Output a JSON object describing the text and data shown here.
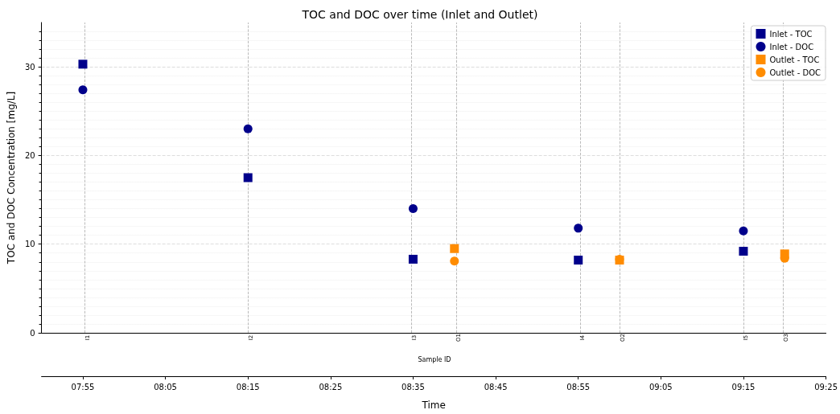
{
  "chart_data": {
    "type": "scatter",
    "title": "TOC and DOC over time (Inlet and Outlet)",
    "xlabel": "Time",
    "ylabel": "TOC and DOC Concentration [mg/L]",
    "annotations": [
      "Sample ID"
    ],
    "series": [
      {
        "name": "Inlet - TOC",
        "color": "#00008b",
        "marker": "square",
        "x": [
          7.9167,
          8.25,
          8.5833,
          8.9167,
          9.25
        ],
        "values": [
          30.3,
          17.5,
          8.3,
          8.2,
          9.2
        ]
      },
      {
        "name": "Inlet - DOC",
        "color": "#00008b",
        "marker": "circle",
        "x": [
          7.9167,
          8.25,
          8.5833,
          8.9167,
          9.25
        ],
        "values": [
          27.4,
          23.0,
          14.0,
          11.8,
          11.5
        ]
      },
      {
        "name": "Outlet - TOC",
        "color": "#ff8c00",
        "marker": "square",
        "x": [
          8.6667,
          9.0,
          9.3333
        ],
        "values": [
          9.5,
          8.2,
          8.9
        ]
      },
      {
        "name": "Outlet - DOC",
        "color": "#ff8c00",
        "marker": "circle",
        "x": [
          8.6667,
          9.0,
          9.3333
        ],
        "values": [
          8.1,
          8.3,
          8.4
        ]
      }
    ],
    "xlim": [
      7.8333,
      9.4167
    ],
    "xticks": [
      {
        "value": 7.9167,
        "label": "07:55"
      },
      {
        "value": 8.0833,
        "label": "08:05"
      },
      {
        "value": 8.25,
        "label": "08:15"
      },
      {
        "value": 8.4167,
        "label": "08:25"
      },
      {
        "value": 8.5833,
        "label": "08:35"
      },
      {
        "value": 8.75,
        "label": "08:45"
      },
      {
        "value": 8.9167,
        "label": "08:55"
      },
      {
        "value": 9.0833,
        "label": "09:05"
      },
      {
        "value": 9.25,
        "label": "09:15"
      },
      {
        "value": 9.4167,
        "label": "09:25"
      }
    ],
    "ylim": [
      0,
      35
    ],
    "yticks": [
      0,
      10,
      20,
      30
    ],
    "ref_lines": [
      {
        "axis": "x",
        "value": 7.9167,
        "label": "I1",
        "color": "#aaaaaa",
        "line_style": "dashed"
      },
      {
        "axis": "x",
        "value": 8.25,
        "label": "I2",
        "color": "#aaaaaa",
        "line_style": "dashed"
      },
      {
        "axis": "x",
        "value": 8.5833,
        "label": "I3",
        "color": "#aaaaaa",
        "line_style": "dashed"
      },
      {
        "axis": "x",
        "value": 8.6667,
        "label": "O1",
        "color": "#aaaaaa",
        "line_style": "dashed"
      },
      {
        "axis": "x",
        "value": 8.9167,
        "label": "I4",
        "color": "#aaaaaa",
        "line_style": "dashed"
      },
      {
        "axis": "x",
        "value": 9.0,
        "label": "O2",
        "color": "#aaaaaa",
        "line_style": "dashed"
      },
      {
        "axis": "x",
        "value": 9.25,
        "label": "I5",
        "color": "#aaaaaa",
        "line_style": "dashed"
      },
      {
        "axis": "x",
        "value": 9.3333,
        "label": "O3",
        "color": "#aaaaaa",
        "line_style": "dashed"
      }
    ],
    "grid": "y",
    "legend": "top right"
  }
}
